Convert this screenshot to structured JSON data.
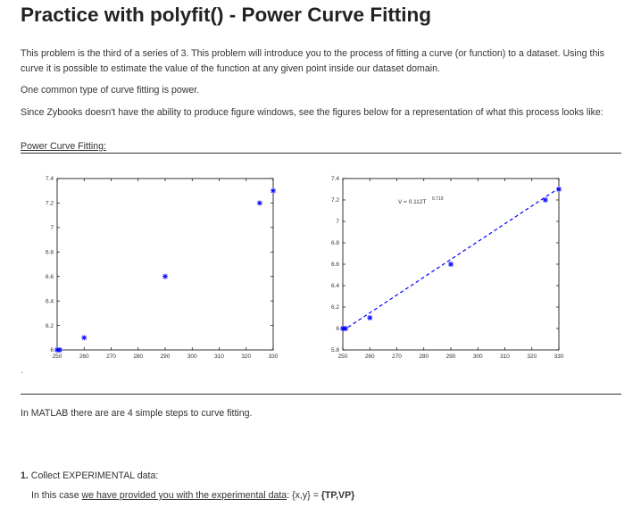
{
  "title": "Practice with polyfit() - Power Curve Fitting",
  "intro": {
    "p1": "This problem is the third of a series of 3. This problem will introduce you to the process of fitting a curve (or function) to a dataset. Using this curve it is possible to estimate the value of the function at any given point inside our dataset domain.",
    "p2": "One common type of curve fitting is power.",
    "p3": "Since Zybooks doesn't have the ability to produce figure windows, see the figures below for a representation of what this process looks like:"
  },
  "section_label": "Power Curve Fitting:",
  "figure_dot": ".",
  "steps_intro": "In MATLAB there are are 4 simple steps to curve fitting.",
  "step1": {
    "number": "1.",
    "title": "Collect EXPERIMENTAL data:",
    "text_prefix": "In this case ",
    "text_link": "we have provided you with the experimental data",
    "text_mid": ": {x,y} = ",
    "text_bold": "{TP,VP}"
  },
  "chart_data": [
    {
      "type": "scatter",
      "x_ticks": [
        "250",
        "260",
        "270",
        "280",
        "290",
        "300",
        "310",
        "320",
        "330"
      ],
      "y_ticks": [
        "6",
        "6.2",
        "6.4",
        "6.6",
        "6.8",
        "7",
        "7.2",
        "7.4"
      ],
      "xlim": [
        250,
        330
      ],
      "ylim": [
        6,
        7.4
      ],
      "series": [
        {
          "marker": "asterisk",
          "color": "#0000ff",
          "x": [
            250,
            251,
            260,
            290,
            325,
            330
          ],
          "y": [
            6.0,
            6.0,
            6.1,
            6.6,
            7.2,
            7.3
          ]
        }
      ]
    },
    {
      "type": "scatter",
      "x_ticks": [
        "250",
        "260",
        "270",
        "280",
        "290",
        "300",
        "310",
        "320",
        "330"
      ],
      "y_ticks": [
        "5.8",
        "6",
        "6.2",
        "6.4",
        "6.6",
        "6.8",
        "7",
        "7.2",
        "7.4"
      ],
      "xlim": [
        250,
        330
      ],
      "ylim": [
        5.8,
        7.4
      ],
      "annotation": "V = 0.112T",
      "annotation_exponent": "0.719",
      "series": [
        {
          "marker": "asterisk",
          "color": "#0000ff",
          "x": [
            250,
            251,
            260,
            290,
            325,
            330
          ],
          "y": [
            6.0,
            6.0,
            6.1,
            6.6,
            7.2,
            7.3
          ]
        },
        {
          "line": "dashed",
          "color": "#0000ff",
          "x": [
            250,
            330
          ],
          "y": [
            5.98,
            7.31
          ]
        }
      ]
    }
  ]
}
